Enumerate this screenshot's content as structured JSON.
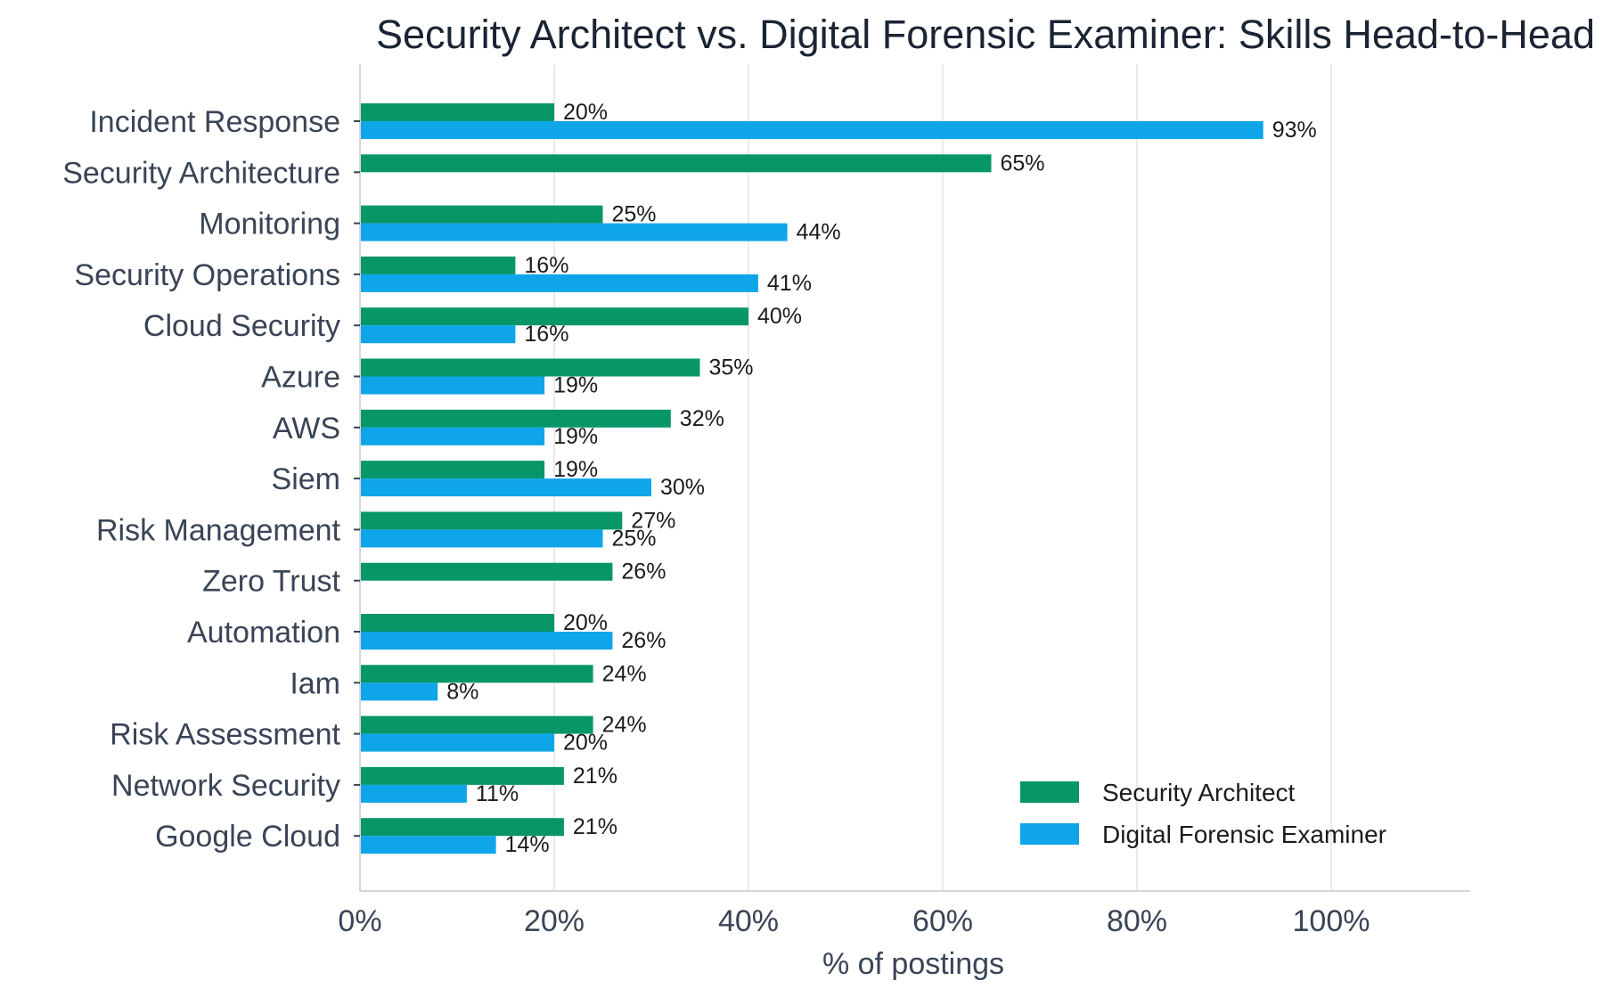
{
  "chart_data": {
    "type": "bar",
    "orientation": "horizontal",
    "title": "Security Architect vs. Digital Forensic Examiner: Skills Head-to-Head",
    "xlabel": "% of postings",
    "ylabel": "",
    "xlim": [
      0,
      114
    ],
    "xticks": [
      "0%",
      "20%",
      "40%",
      "60%",
      "80%",
      "100%"
    ],
    "grid": true,
    "legend_position": "bottom-right",
    "categories": [
      "Incident Response",
      "Security Architecture",
      "Monitoring",
      "Security Operations",
      "Cloud Security",
      "Azure",
      "AWS",
      "Siem",
      "Risk Management",
      "Zero Trust",
      "Automation",
      "Iam",
      "Risk Assessment",
      "Network Security",
      "Google Cloud"
    ],
    "series": [
      {
        "name": "Security Architect",
        "color": "#069668",
        "values": [
          20,
          65,
          25,
          16,
          40,
          35,
          32,
          19,
          27,
          26,
          20,
          24,
          24,
          21,
          21
        ],
        "labels": [
          "20%",
          "65%",
          "25%",
          "16%",
          "40%",
          "35%",
          "32%",
          "19%",
          "27%",
          "26%",
          "20%",
          "24%",
          "24%",
          "21%",
          "21%"
        ]
      },
      {
        "name": "Digital Forensic Examiner",
        "color": "#0ea5e9",
        "values": [
          93,
          null,
          44,
          41,
          16,
          19,
          19,
          30,
          25,
          null,
          26,
          8,
          20,
          11,
          14
        ],
        "labels": [
          "93%",
          "",
          "44%",
          "41%",
          "16%",
          "19%",
          "19%",
          "30%",
          "25%",
          "",
          "26%",
          "8%",
          "20%",
          "11%",
          "14%"
        ]
      }
    ]
  }
}
